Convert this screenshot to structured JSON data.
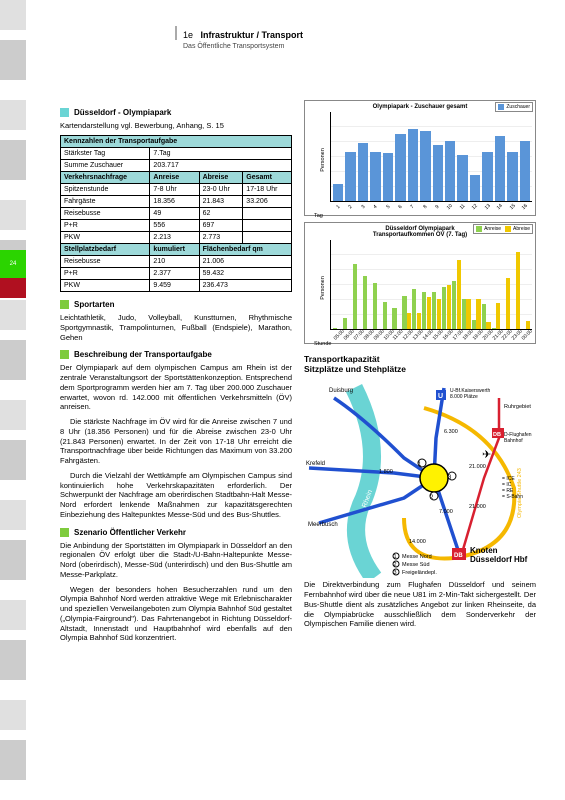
{
  "header": {
    "section_num": "1e",
    "section_title": "Infrastruktur / Transport",
    "section_sub": "Das Öffentliche Transportsystem"
  },
  "page_tab": "24",
  "title": "Düsseldorf - Olympiapark",
  "subtitle": "Kartendarstellung vgl. Bewerbung, Anhang, S. 15",
  "table": {
    "header": "Kennzahlen der Transportaufgabe",
    "rows1": [
      [
        "Stärkster Tag",
        "7.Tag"
      ],
      [
        "Summe Zuschauer",
        "203.717"
      ]
    ],
    "nachfrage_head": [
      "Verkehrsnachfrage",
      "Anreise",
      "Abreise",
      "Gesamt"
    ],
    "rows2": [
      [
        "Spitzenstunde",
        "7-8 Uhr",
        "23-0 Uhr",
        "17-18 Uhr"
      ],
      [
        "Fahrgäste",
        "18.356",
        "21.843",
        "33.206"
      ],
      [
        "Reisebusse",
        "49",
        "62",
        ""
      ],
      [
        "P+R",
        "556",
        "697",
        ""
      ],
      [
        "PKW",
        "2.213",
        "2.773",
        ""
      ]
    ],
    "stellplatz_head": [
      "Stellplatzbedarf",
      "kumuliert",
      "Flächenbedarf qm"
    ],
    "rows3": [
      [
        "Reisebusse",
        "210",
        "21.006"
      ],
      [
        "P+R",
        "2.377",
        "59.432"
      ],
      [
        "PKW",
        "9.459",
        "236.473"
      ]
    ]
  },
  "sportarten": {
    "title": "Sportarten",
    "text": "Leichtathletik, Judo, Volleyball, Kunstturnen, Rhythmische Sportgymnastik, Trampolinturnen, Fußball (Endspiele), Marathon, Gehen"
  },
  "beschreibung": {
    "title": "Beschreibung der Transportaufgabe",
    "p1": "Der Olympiapark auf dem olympischen Campus am Rhein ist der zentrale Veranstaltungsort der Sportstättenkonzeption. Entsprechend dem Sportprogramm werden hier am 7. Tag über 200.000 Zuschauer erwartet, wovon rd. 142.000 mit öffentlichen Verkehrsmitteln (ÖV) anreisen.",
    "p2": "Die stärkste Nachfrage im ÖV wird für die Anreise zwischen 7 und 8 Uhr (18.356 Personen) und für die Abreise zwischen 23-0 Uhr (21.843 Personen) erwartet. In der Zeit von 17-18 Uhr erreicht die Transportnachfrage über beide Richtungen das Maximum von 33.200 Fahrgästen.",
    "p3": "Durch die Vielzahl der Wettkämpfe am Olympischen Campus sind kontinuierlich hohe Verkehrskapazitäten erforderlich. Der Schwerpunkt der Nachfrage am oberirdischen Stadtbahn-Halt Messe-Nord erfordert lenkende Maßnahmen zur kapazitätsgerechten Einbeziehung des Haltepunktes Messe-Süd und des Bus-Shuttles."
  },
  "szenario": {
    "title": "Szenario Öffentlicher Verkehr",
    "p1": "Die Anbindung der Sportstätten im Olympiapark in Düsseldorf an den regionalen ÖV erfolgt über die Stadt-/U-Bahn-Haltepunkte Messe-Nord (oberirdisch), Messe-Süd (unterirdisch) und den Bus-Shuttle am Messe-Parkplatz.",
    "p2": "Wegen der besonders hohen Besucherzahlen rund um den Olympia Bahnhof Nord werden attraktive Wege mit Erlebnischarakter und speziellen Verweilangeboten zum Olympia Bahnhof Süd gestaltet („Olympia-Fairground\"). Das Fahrtenangebot in Richtung Düsseldorf-Altstadt, Innenstadt und Hauptbahnhof wird ebenfalls auf den Olympia Bahnhof Süd konzentriert."
  },
  "chart1": {
    "title": "Olympiapark - Zuschauer gesamt",
    "legend": "Zuschauer",
    "ylabel": "Personen",
    "xlabel": "Tag",
    "ymax": 250000,
    "labels": [
      "1",
      "2",
      "3",
      "4",
      "5",
      "6",
      "7",
      "8",
      "9",
      "10",
      "11",
      "12",
      "13",
      "14",
      "15",
      "16"
    ],
    "values": [
      48000,
      140000,
      165000,
      140000,
      135000,
      190000,
      205000,
      200000,
      158000,
      170000,
      130000,
      75000,
      140000,
      185000,
      140000,
      170000
    ],
    "bar_color": "#5a95d8"
  },
  "chart2": {
    "title_l1": "Düsseldorf Olympiapark",
    "title_l2": "Transportaufkommen ÖV (7. Tag)",
    "legend_a": "Anreise",
    "legend_b": "Abreise",
    "ylabel": "Personen",
    "xlabel": "Stunde",
    "ymax": 25000,
    "labels": [
      "05:00",
      "06:00",
      "07:00",
      "08:00",
      "09:00",
      "10:00",
      "11:00",
      "12:00",
      "13:00",
      "14:00",
      "15:00",
      "16:00",
      "17:00",
      "18:00",
      "19:00",
      "20:00",
      "21:00",
      "22:00",
      "23:00",
      "00:00"
    ],
    "anreise": [
      300,
      3200,
      18356,
      15000,
      13000,
      7800,
      6000,
      9500,
      11500,
      10500,
      10500,
      12000,
      13500,
      8500,
      2500,
      7000,
      200,
      0,
      0,
      0
    ],
    "abreise": [
      0,
      0,
      0,
      0,
      0,
      0,
      0,
      4500,
      4500,
      9000,
      8500,
      12500,
      19500,
      8500,
      8500,
      2000,
      7500,
      14500,
      21843,
      2200
    ],
    "color_a": "#8fd14f",
    "color_b": "#f0c800"
  },
  "map": {
    "title_l1": "Transportkapazität",
    "title_l2": "Sitzplätze und Stehplätze",
    "nodes": {
      "duisburg": "Duisburg",
      "krefeld": "Krefeld",
      "meerbusch": "Meerbusch",
      "rhein": "Rhein",
      "ruhrgebiet": "Ruhrgebiet",
      "db_kaiserswerth": "U-Bf.Kaiserswerth\n8.000 Plätze",
      "flughafen": "D-Flughafen\nBahnhof",
      "knoten_l1": "Knoten",
      "knoten_l2": "Düsseldorf Hbf",
      "shuttle": "Olympia-Shuttle 243"
    },
    "legend_items": [
      "Messe Nord",
      "Messe Süd",
      "Freigeländepl."
    ],
    "line_legend": [
      "ICE",
      "IC",
      "RE",
      "S-Bahn"
    ],
    "capacities": [
      "21.000",
      "21.000",
      "7.000",
      "14.000",
      "1.800",
      "6.300"
    ],
    "colors": {
      "rhein": "#6ad4d4",
      "yellow_line": "#f5b800",
      "blue_line": "#2050d0",
      "red_line": "#d82030",
      "db_box": "#d82030"
    }
  },
  "right_lower": "Die Direktverbindung zum Flughafen Düsseldorf und seinem Fernbahnhof wird über die neue U81 im 2-Min-Takt sichergestellt. Der Bus-Shuttle dient als zusätzliches Angebot zur linken Rheinseite, da die Olympiabrücke ausschließlich dem Sonderverkehr der Olympischen Familie dienen wird."
}
